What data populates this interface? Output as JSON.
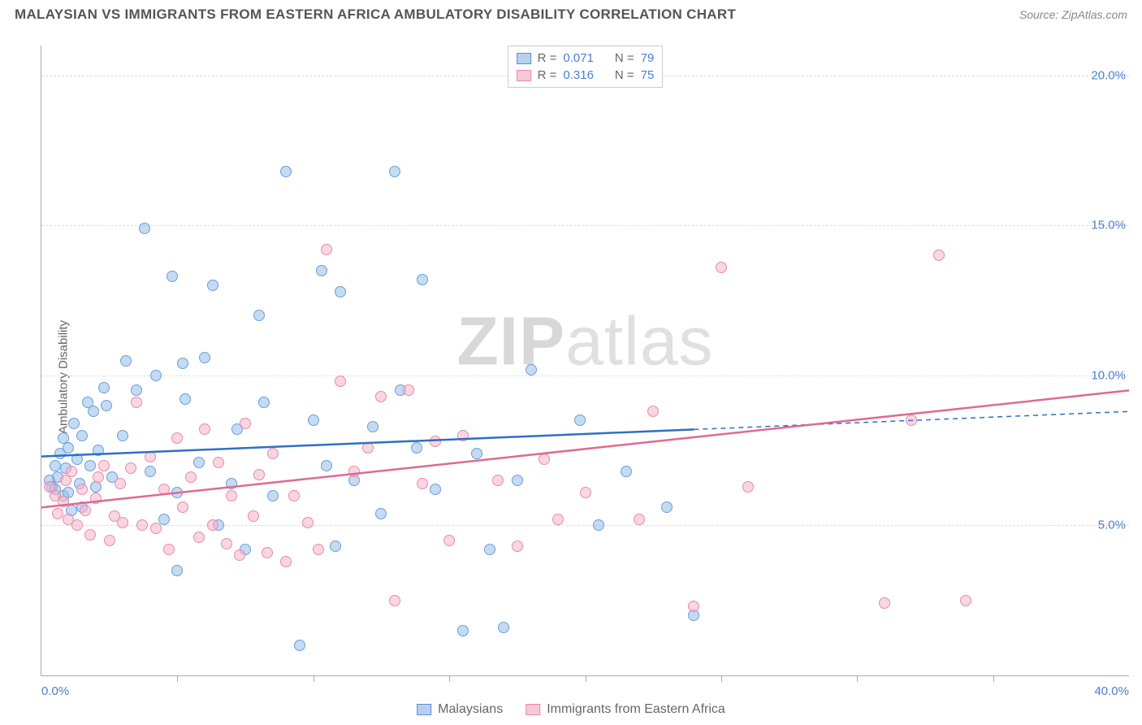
{
  "title": "MALAYSIAN VS IMMIGRANTS FROM EASTERN AFRICA AMBULATORY DISABILITY CORRELATION CHART",
  "source": "Source: ZipAtlas.com",
  "ylabel": "Ambulatory Disability",
  "watermark_bold": "ZIP",
  "watermark_light": "atlas",
  "chart": {
    "type": "scatter",
    "background_color": "#ffffff",
    "grid_color": "#dddddd",
    "axis_color": "#aaaaaa",
    "tick_label_color": "#4b7fd1",
    "xlim": [
      0,
      40
    ],
    "ylim": [
      0,
      21
    ],
    "y_gridlines": [
      5,
      10,
      15,
      20
    ],
    "y_tick_labels": [
      "5.0%",
      "10.0%",
      "15.0%",
      "20.0%"
    ],
    "x_ticks_minor": [
      5,
      10,
      15,
      20,
      25,
      30,
      35
    ],
    "x_tick_left": "0.0%",
    "x_tick_right": "40.0%",
    "point_radius": 7,
    "trend_line_width": 2.5
  },
  "legend_top": {
    "rows": [
      {
        "swatch_fill": "#b8d0ef",
        "swatch_border": "#5a8fd6",
        "r_label": "R =",
        "r_value": "0.071",
        "n_label": "N =",
        "n_value": "79"
      },
      {
        "swatch_fill": "#f6c9d6",
        "swatch_border": "#e88aa8",
        "r_label": "R =",
        "r_value": "0.316",
        "n_label": "N =",
        "n_value": "75"
      }
    ]
  },
  "legend_bottom": {
    "items": [
      {
        "swatch_fill": "#b8d0ef",
        "swatch_border": "#5a8fd6",
        "label": "Malaysians"
      },
      {
        "swatch_fill": "#f6c9d6",
        "swatch_border": "#e88aa8",
        "label": "Immigrants from Eastern Africa"
      }
    ]
  },
  "series": [
    {
      "name": "Malaysians",
      "point_fill": "rgba(150,190,235,0.55)",
      "point_border": "#6a9fd8",
      "trend_color": "#2e6fc7",
      "trend": {
        "x1": 0,
        "y1": 7.3,
        "x2_solid": 24,
        "y2_solid": 8.2,
        "x2": 40,
        "y2": 8.8
      },
      "points": [
        [
          0.3,
          6.5
        ],
        [
          0.4,
          6.3
        ],
        [
          0.5,
          7.0
        ],
        [
          0.5,
          6.2
        ],
        [
          0.6,
          6.6
        ],
        [
          0.7,
          7.4
        ],
        [
          0.8,
          7.9
        ],
        [
          0.8,
          6.0
        ],
        [
          0.9,
          6.9
        ],
        [
          1.0,
          7.6
        ],
        [
          1.0,
          6.1
        ],
        [
          1.1,
          5.5
        ],
        [
          1.2,
          8.4
        ],
        [
          1.3,
          7.2
        ],
        [
          1.4,
          6.4
        ],
        [
          1.5,
          8.0
        ],
        [
          1.5,
          5.6
        ],
        [
          1.7,
          9.1
        ],
        [
          1.8,
          7.0
        ],
        [
          1.9,
          8.8
        ],
        [
          2.0,
          6.3
        ],
        [
          2.1,
          7.5
        ],
        [
          2.3,
          9.6
        ],
        [
          2.4,
          9.0
        ],
        [
          2.6,
          6.6
        ],
        [
          3.0,
          8.0
        ],
        [
          3.1,
          10.5
        ],
        [
          3.5,
          9.5
        ],
        [
          3.8,
          14.9
        ],
        [
          4.0,
          6.8
        ],
        [
          4.2,
          10.0
        ],
        [
          4.5,
          5.2
        ],
        [
          4.8,
          13.3
        ],
        [
          5.0,
          3.5
        ],
        [
          5.0,
          6.1
        ],
        [
          5.2,
          10.4
        ],
        [
          5.3,
          9.2
        ],
        [
          5.8,
          7.1
        ],
        [
          6.0,
          10.6
        ],
        [
          6.3,
          13.0
        ],
        [
          6.5,
          5.0
        ],
        [
          7.0,
          6.4
        ],
        [
          7.2,
          8.2
        ],
        [
          7.5,
          4.2
        ],
        [
          8.0,
          12.0
        ],
        [
          8.2,
          9.1
        ],
        [
          8.5,
          6.0
        ],
        [
          9.0,
          16.8
        ],
        [
          9.5,
          1.0
        ],
        [
          10.0,
          8.5
        ],
        [
          10.3,
          13.5
        ],
        [
          10.5,
          7.0
        ],
        [
          10.8,
          4.3
        ],
        [
          11.0,
          12.8
        ],
        [
          11.5,
          6.5
        ],
        [
          12.2,
          8.3
        ],
        [
          12.5,
          5.4
        ],
        [
          13.0,
          16.8
        ],
        [
          13.2,
          9.5
        ],
        [
          13.8,
          7.6
        ],
        [
          14.0,
          13.2
        ],
        [
          14.5,
          6.2
        ],
        [
          15.5,
          1.5
        ],
        [
          16.0,
          7.4
        ],
        [
          16.5,
          4.2
        ],
        [
          17.0,
          1.6
        ],
        [
          17.5,
          6.5
        ],
        [
          18.0,
          10.2
        ],
        [
          19.8,
          8.5
        ],
        [
          20.5,
          5.0
        ],
        [
          21.5,
          6.8
        ],
        [
          23.0,
          5.6
        ],
        [
          24.0,
          2.0
        ]
      ]
    },
    {
      "name": "Immigrants from Eastern Africa",
      "point_fill": "rgba(245,180,200,0.55)",
      "point_border": "#e88aa8",
      "trend_color": "#e06a8f",
      "trend": {
        "x1": 0,
        "y1": 5.6,
        "x2_solid": 40,
        "y2_solid": 9.5,
        "x2": 40,
        "y2": 9.5
      },
      "points": [
        [
          0.3,
          6.3
        ],
        [
          0.5,
          6.0
        ],
        [
          0.6,
          5.4
        ],
        [
          0.8,
          5.8
        ],
        [
          0.9,
          6.5
        ],
        [
          1.0,
          5.2
        ],
        [
          1.1,
          6.8
        ],
        [
          1.3,
          5.0
        ],
        [
          1.5,
          6.2
        ],
        [
          1.6,
          5.5
        ],
        [
          1.8,
          4.7
        ],
        [
          2.0,
          5.9
        ],
        [
          2.1,
          6.6
        ],
        [
          2.3,
          7.0
        ],
        [
          2.5,
          4.5
        ],
        [
          2.7,
          5.3
        ],
        [
          2.9,
          6.4
        ],
        [
          3.0,
          5.1
        ],
        [
          3.3,
          6.9
        ],
        [
          3.5,
          9.1
        ],
        [
          3.7,
          5.0
        ],
        [
          4.0,
          7.3
        ],
        [
          4.2,
          4.9
        ],
        [
          4.5,
          6.2
        ],
        [
          4.7,
          4.2
        ],
        [
          5.0,
          7.9
        ],
        [
          5.2,
          5.6
        ],
        [
          5.5,
          6.6
        ],
        [
          5.8,
          4.6
        ],
        [
          6.0,
          8.2
        ],
        [
          6.3,
          5.0
        ],
        [
          6.5,
          7.1
        ],
        [
          6.8,
          4.4
        ],
        [
          7.0,
          6.0
        ],
        [
          7.3,
          4.0
        ],
        [
          7.5,
          8.4
        ],
        [
          7.8,
          5.3
        ],
        [
          8.0,
          6.7
        ],
        [
          8.3,
          4.1
        ],
        [
          8.5,
          7.4
        ],
        [
          9.0,
          3.8
        ],
        [
          9.3,
          6.0
        ],
        [
          9.8,
          5.1
        ],
        [
          10.2,
          4.2
        ],
        [
          10.5,
          14.2
        ],
        [
          11.0,
          9.8
        ],
        [
          11.5,
          6.8
        ],
        [
          12.0,
          7.6
        ],
        [
          12.5,
          9.3
        ],
        [
          13.0,
          2.5
        ],
        [
          13.5,
          9.5
        ],
        [
          14.0,
          6.4
        ],
        [
          14.5,
          7.8
        ],
        [
          15.0,
          4.5
        ],
        [
          15.5,
          8.0
        ],
        [
          16.8,
          6.5
        ],
        [
          17.5,
          4.3
        ],
        [
          18.5,
          7.2
        ],
        [
          19.0,
          5.2
        ],
        [
          20.0,
          6.1
        ],
        [
          22.0,
          5.2
        ],
        [
          22.5,
          8.8
        ],
        [
          24.0,
          2.3
        ],
        [
          25.0,
          13.6
        ],
        [
          26.0,
          6.3
        ],
        [
          31.0,
          2.4
        ],
        [
          32.0,
          8.5
        ],
        [
          33.0,
          14.0
        ],
        [
          34.0,
          2.5
        ]
      ]
    }
  ]
}
